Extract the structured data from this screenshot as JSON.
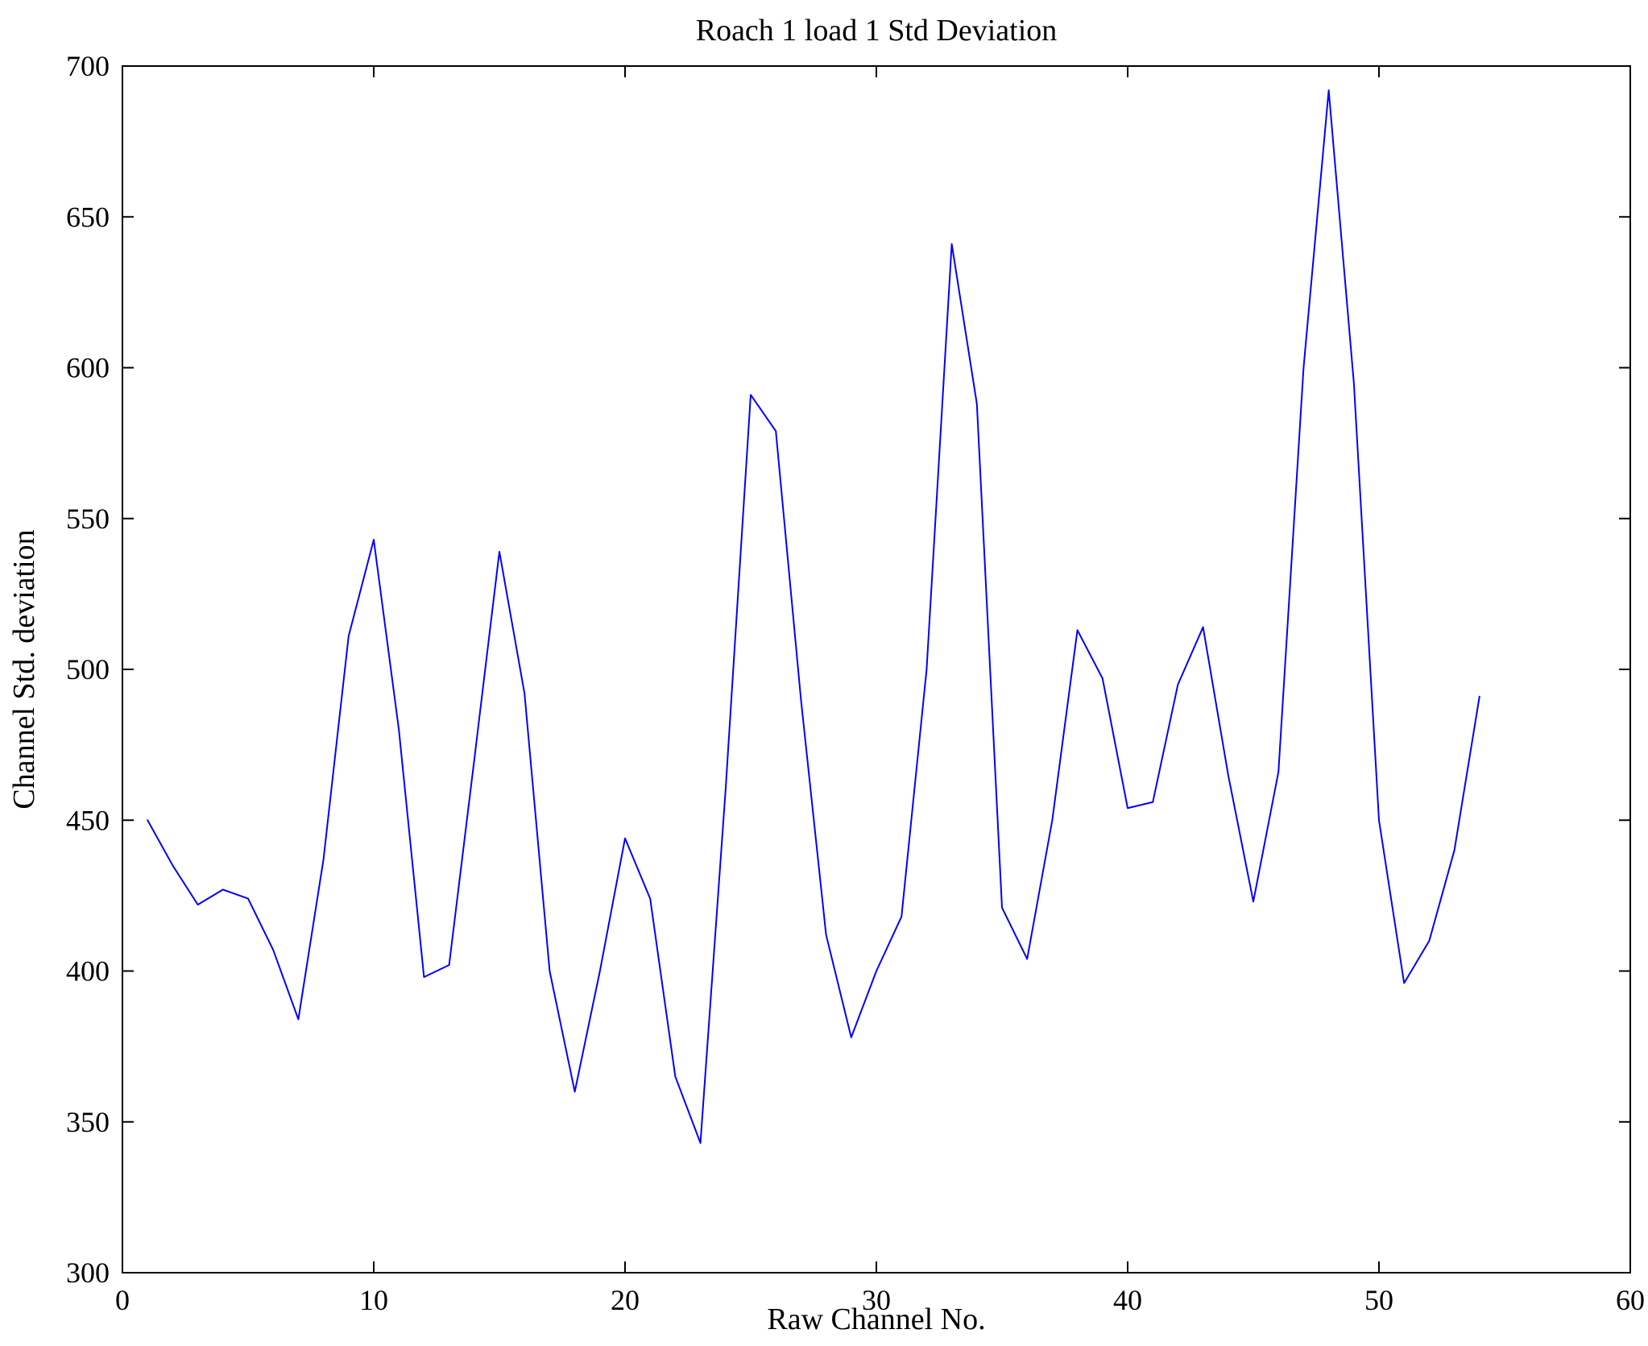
{
  "figure": {
    "title": "Roach 1 load 1 Std Deviation",
    "xlabel": "Raw Channel No.",
    "ylabel": "Channel Std. deviation"
  },
  "chart_data": {
    "type": "line",
    "title": "Roach 1 load 1 Std Deviation",
    "xlabel": "Raw Channel No.",
    "ylabel": "Channel Std. deviation",
    "xlim": [
      0,
      60
    ],
    "ylim": [
      300,
      700
    ],
    "xticks": [
      0,
      10,
      20,
      30,
      40,
      50,
      60
    ],
    "yticks": [
      300,
      350,
      400,
      450,
      500,
      550,
      600,
      650,
      700
    ],
    "grid": false,
    "legend": false,
    "line_color": "#0000ff",
    "axis_color": "#000000",
    "x": [
      1,
      2,
      3,
      4,
      5,
      6,
      7,
      8,
      9,
      10,
      11,
      12,
      13,
      14,
      15,
      16,
      17,
      18,
      19,
      20,
      21,
      22,
      23,
      24,
      25,
      26,
      27,
      28,
      29,
      30,
      31,
      32,
      33,
      34,
      35,
      36,
      37,
      38,
      39,
      40,
      41,
      42,
      43,
      44,
      45,
      46,
      47,
      48,
      49,
      50,
      51,
      52,
      53,
      54
    ],
    "y": [
      450,
      435,
      422,
      427,
      424,
      407,
      384,
      437,
      511,
      543,
      480,
      398,
      402,
      470,
      539,
      492,
      400,
      360,
      400,
      444,
      424,
      365,
      343,
      460,
      591,
      579,
      490,
      412,
      378,
      400,
      418,
      500,
      641,
      588,
      421,
      404,
      450,
      513,
      497,
      454,
      456,
      495,
      514,
      465,
      423,
      466,
      600,
      692,
      595,
      450,
      396,
      410,
      440,
      491
    ]
  }
}
